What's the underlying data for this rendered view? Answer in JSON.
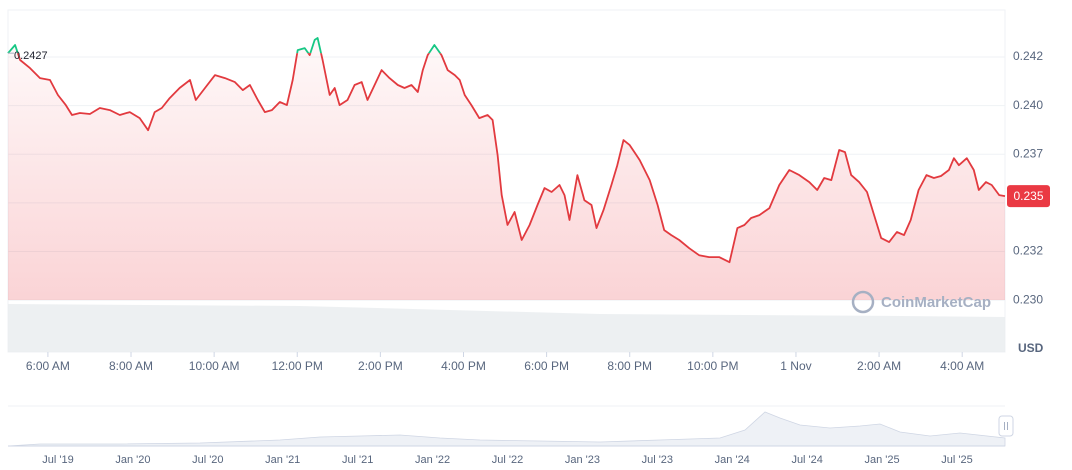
{
  "chart_data": {
    "type": "line",
    "color": "#e23a3f",
    "up_color": "#16c784",
    "reference": 0.2427,
    "current_price": {
      "value": 0.23535,
      "label": "0.235"
    },
    "axis_label": "USD",
    "watermark": "CoinMarketCap",
    "grid": true,
    "xlim": [
      5.04,
      29.03
    ],
    "ylim": [
      0.22733,
      0.24492
    ],
    "xticks": [
      {
        "value": 6,
        "label": "6:00 AM"
      },
      {
        "value": 8,
        "label": "8:00 AM"
      },
      {
        "value": 10,
        "label": "10:00 AM"
      },
      {
        "value": 12,
        "label": "12:00 PM"
      },
      {
        "value": 14,
        "label": "2:00 PM"
      },
      {
        "value": 16,
        "label": "4:00 PM"
      },
      {
        "value": 18,
        "label": "6:00 PM"
      },
      {
        "value": 20,
        "label": "8:00 PM"
      },
      {
        "value": 22,
        "label": "10:00 PM"
      },
      {
        "value": 24,
        "label": "1 Nov"
      },
      {
        "value": 26,
        "label": "2:00 AM"
      },
      {
        "value": 28,
        "label": "4:00 AM"
      }
    ],
    "yticks": [
      {
        "value": 0.2425,
        "label": "0.242"
      },
      {
        "value": 0.24,
        "label": "0.240"
      },
      {
        "value": 0.2375,
        "label": "0.237"
      },
      {
        "value": 0.235,
        "label": "0.235"
      },
      {
        "value": 0.2325,
        "label": "0.232"
      },
      {
        "value": 0.23,
        "label": "0.230"
      }
    ],
    "x": [
      5.04,
      5.21,
      5.33,
      5.57,
      5.81,
      6.05,
      6.24,
      6.43,
      6.58,
      6.77,
      7.01,
      7.25,
      7.49,
      7.73,
      7.97,
      8.21,
      8.41,
      8.57,
      8.74,
      8.93,
      9.17,
      9.42,
      9.56,
      9.78,
      10.02,
      10.26,
      10.5,
      10.69,
      10.86,
      11.05,
      11.22,
      11.39,
      11.58,
      11.75,
      11.89,
      12.01,
      12.18,
      12.3,
      12.42,
      12.49,
      12.61,
      12.78,
      12.9,
      13.02,
      13.21,
      13.38,
      13.55,
      13.69,
      13.86,
      14.03,
      14.22,
      14.42,
      14.58,
      14.75,
      14.9,
      15.02,
      15.14,
      15.3,
      15.47,
      15.62,
      15.79,
      15.91,
      16.03,
      16.19,
      16.38,
      16.58,
      16.7,
      16.82,
      16.92,
      17.06,
      17.23,
      17.4,
      17.59,
      17.78,
      17.95,
      18.12,
      18.31,
      18.43,
      18.55,
      18.74,
      18.91,
      19.08,
      19.2,
      19.37,
      19.56,
      19.7,
      19.85,
      20.0,
      20.24,
      20.48,
      20.67,
      20.83,
      21.0,
      21.19,
      21.43,
      21.67,
      21.91,
      22.15,
      22.4,
      22.59,
      22.76,
      22.92,
      23.12,
      23.36,
      23.6,
      23.84,
      24.08,
      24.32,
      24.51,
      24.68,
      24.85,
      25.04,
      25.18,
      25.33,
      25.52,
      25.71,
      25.88,
      26.05,
      26.24,
      26.43,
      26.6,
      26.76,
      26.95,
      27.14,
      27.32,
      27.49,
      27.68,
      27.8,
      27.92,
      28.11,
      28.28,
      28.4,
      28.57,
      28.71,
      28.89,
      29.03
    ],
    "values": [
      0.2427,
      0.24312,
      0.24235,
      0.24193,
      0.24142,
      0.24132,
      0.24055,
      0.24003,
      0.23952,
      0.23962,
      0.23957,
      0.23988,
      0.23977,
      0.23952,
      0.23967,
      0.23936,
      0.23874,
      0.23967,
      0.23988,
      0.24039,
      0.24091,
      0.24132,
      0.24029,
      0.24091,
      0.24157,
      0.24142,
      0.24121,
      0.2408,
      0.24106,
      0.24029,
      0.23967,
      0.23977,
      0.24019,
      0.24003,
      0.24132,
      0.24286,
      0.24296,
      0.2426,
      0.24338,
      0.24348,
      0.24235,
      0.24055,
      0.24091,
      0.24003,
      0.24029,
      0.24106,
      0.24121,
      0.24029,
      0.24106,
      0.24183,
      0.24142,
      0.24106,
      0.24091,
      0.24106,
      0.2407,
      0.24183,
      0.2426,
      0.24312,
      0.2426,
      0.24183,
      0.24157,
      0.24132,
      0.24055,
      0.24003,
      0.23936,
      0.23952,
      0.23926,
      0.23746,
      0.2354,
      0.23386,
      0.23453,
      0.23309,
      0.23386,
      0.23489,
      0.23576,
      0.23556,
      0.23592,
      0.2354,
      0.23412,
      0.23643,
      0.23514,
      0.23489,
      0.2337,
      0.23463,
      0.23592,
      0.23694,
      0.23823,
      0.23797,
      0.2372,
      0.23617,
      0.23489,
      0.2336,
      0.23334,
      0.23309,
      0.23267,
      0.23231,
      0.23221,
      0.23221,
      0.23195,
      0.2337,
      0.23386,
      0.23422,
      0.23437,
      0.23473,
      0.23592,
      0.23669,
      0.23643,
      0.23607,
      0.23566,
      0.23628,
      0.23617,
      0.23772,
      0.23761,
      0.23643,
      0.23607,
      0.23556,
      0.23437,
      0.23319,
      0.23298,
      0.2335,
      0.23334,
      0.23412,
      0.23566,
      0.23643,
      0.23628,
      0.23638,
      0.23669,
      0.2373,
      0.23694,
      0.2373,
      0.23669,
      0.23566,
      0.23607,
      0.23592,
      0.2354,
      0.23535
    ]
  },
  "navigator_labels": [
    "Jul '19",
    "Jan '20",
    "Jul '20",
    "Jan '21",
    "Jul '21",
    "Jan '22",
    "Jul '22",
    "Jan '23",
    "Jul '23",
    "Jan '24",
    "Jul '24",
    "Jan '25",
    "Jul '25"
  ]
}
